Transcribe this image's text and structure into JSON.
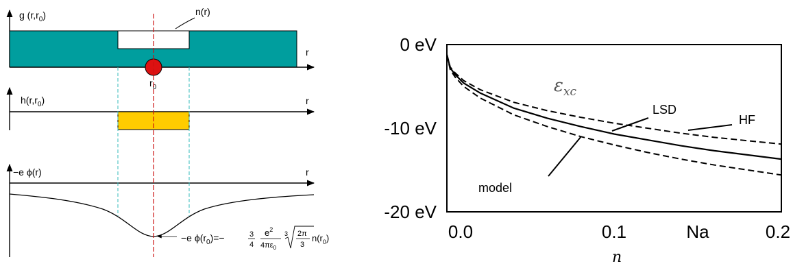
{
  "left": {
    "panel_g": {
      "ylabel": "g  (r,r",
      "ylabel_sub": "0",
      "ylabel_end": ")",
      "xlabel": "r",
      "hole_label": "n(r)",
      "electron_label": "r",
      "electron_sub": "0"
    },
    "panel_h": {
      "ylabel": "h(r,r",
      "ylabel_sub": "0",
      "ylabel_end": ")",
      "xlabel": "r"
    },
    "panel_phi": {
      "ylabel": "−e ϕ(r)",
      "xlabel": "r"
    },
    "formula": {
      "lhs": "−e ϕ(r",
      "lhs_sub": "0",
      "lhs_end": ")=−",
      "frac1_num": "3",
      "frac1_den": "4",
      "frac2_num": "e",
      "frac2_num_sup": "2",
      "frac2_den": "4πε",
      "frac2_den_sub": "0",
      "root_index": "3",
      "frac3_num": "2π",
      "frac3_den": "3",
      "tail": "n(r",
      "tail_sub": "0",
      "tail_end": ")"
    },
    "colors": {
      "teal": "#009e9e",
      "gold": "#ffcc00",
      "electron": "#dd1111",
      "dashed_red": "#cc1111",
      "guide_cyan": "#33bbbb"
    }
  },
  "chart_data": {
    "type": "line",
    "xlabel": "n",
    "ylabel": "",
    "xlim": [
      0,
      0.2
    ],
    "ylim": [
      -20,
      0
    ],
    "x_ticks": [
      "0.0",
      "0.1",
      "Na",
      "0.2"
    ],
    "y_ticks": [
      "0 eV",
      "-10 eV",
      "-20 eV"
    ],
    "annotation": "ε",
    "annotation_sub": "xc",
    "series": [
      {
        "name": "LSD",
        "style": "solid",
        "x": [
          0.0,
          0.002,
          0.005,
          0.01,
          0.02,
          0.04,
          0.06,
          0.08,
          0.1,
          0.12,
          0.14,
          0.16,
          0.18,
          0.2
        ],
        "y": [
          -1.2,
          -2.8,
          -3.6,
          -4.6,
          -5.8,
          -7.6,
          -8.8,
          -9.8,
          -10.7,
          -11.4,
          -12.1,
          -12.7,
          -13.2,
          -13.7
        ]
      },
      {
        "name": "HF",
        "style": "dashed",
        "x": [
          0.0,
          0.002,
          0.005,
          0.01,
          0.02,
          0.04,
          0.06,
          0.08,
          0.1,
          0.12,
          0.14,
          0.16,
          0.18,
          0.2
        ],
        "y": [
          -1.2,
          -2.7,
          -3.4,
          -4.3,
          -5.4,
          -6.9,
          -7.9,
          -8.7,
          -9.4,
          -10.0,
          -10.6,
          -11.1,
          -11.5,
          -11.9
        ]
      },
      {
        "name": "model",
        "style": "dashed",
        "x": [
          0.0,
          0.002,
          0.005,
          0.01,
          0.02,
          0.04,
          0.06,
          0.08,
          0.1,
          0.12,
          0.14,
          0.16,
          0.18,
          0.2
        ],
        "y": [
          -1.2,
          -3.0,
          -3.9,
          -5.0,
          -6.4,
          -8.4,
          -9.8,
          -11.0,
          -12.0,
          -12.9,
          -13.7,
          -14.4,
          -15.0,
          -15.6
        ]
      }
    ],
    "labels": {
      "lsd": "LSD",
      "hf": "HF",
      "model": "model"
    }
  }
}
